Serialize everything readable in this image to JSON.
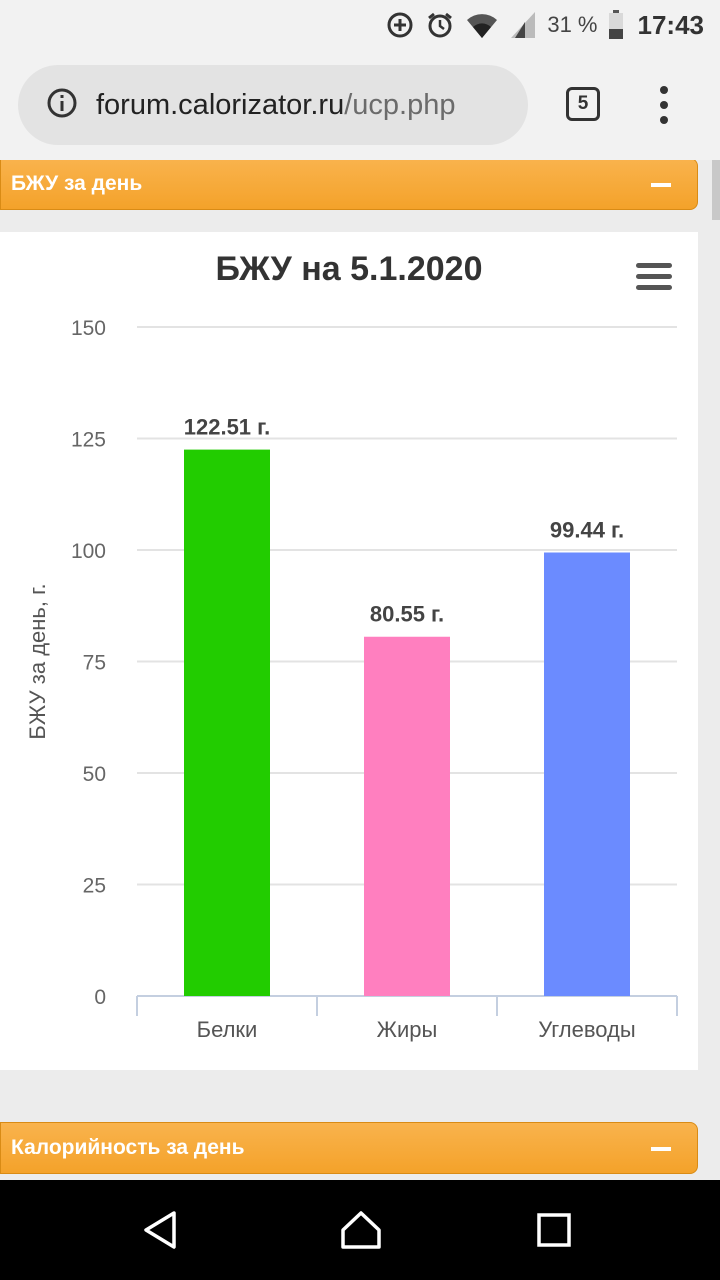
{
  "status_bar": {
    "battery": "31 %",
    "time": "17:43"
  },
  "browser": {
    "url_domain": "forum.calorizator.ru",
    "url_path": "/ucp.php",
    "tab_count": "5"
  },
  "panels": {
    "bju_title": "БЖУ за день",
    "calories_title": "Калорийность за день"
  },
  "colors": {
    "protein": "#22cc00",
    "fat": "#ff7fbf",
    "carbs": "#6b8bff",
    "panel_orange": "#f6a832"
  },
  "chart_data": {
    "type": "bar",
    "title": "БЖУ на 5.1.2020",
    "ylabel": "БЖУ за день, г.",
    "xlabel": "",
    "ylim": [
      0,
      150
    ],
    "yticks": [
      "0",
      "25",
      "50",
      "75",
      "100",
      "125",
      "150"
    ],
    "grid": true,
    "categories": [
      "Белки",
      "Жиры",
      "Углеводы"
    ],
    "values": [
      122.51,
      80.55,
      99.44
    ],
    "data_labels": [
      "122.51 г.",
      "80.55 г.",
      "99.44 г."
    ]
  }
}
